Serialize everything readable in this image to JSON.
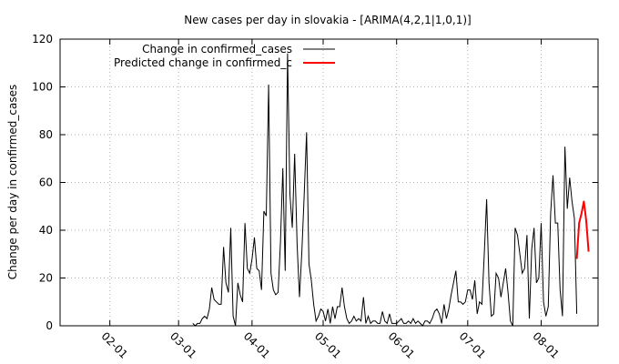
{
  "chart_data": {
    "type": "line",
    "title": "New cases per day in slovakia -  [ARIMA(4,2,1|1,0,1)]",
    "xlabel": "",
    "ylabel": "Change per day in confirmed_cases",
    "ylim": [
      0,
      120
    ],
    "y_ticks": [
      0,
      20,
      40,
      60,
      80,
      100,
      120
    ],
    "x_ticks": [
      {
        "label": "02-01",
        "x": 31
      },
      {
        "label": "03-01",
        "x": 60
      },
      {
        "label": "04-01",
        "x": 91
      },
      {
        "label": "05-01",
        "x": 121
      },
      {
        "label": "06-01",
        "x": 152
      },
      {
        "label": "07-01",
        "x": 182
      },
      {
        "label": "08-01",
        "x": 213
      }
    ],
    "xlim": [
      10,
      237
    ],
    "x_unit": "day of year",
    "grid": true,
    "legend_position": "top-left",
    "series": [
      {
        "name": "Change in confirmed_cases",
        "color": "#000000",
        "x": [
          66,
          67,
          68,
          69,
          70,
          71,
          72,
          73,
          74,
          75,
          76,
          77,
          78,
          79,
          80,
          81,
          82,
          83,
          84,
          85,
          86,
          87,
          88,
          89,
          90,
          91,
          92,
          93,
          94,
          95,
          96,
          97,
          98,
          99,
          100,
          101,
          102,
          103,
          104,
          105,
          106,
          107,
          108,
          109,
          110,
          111,
          112,
          113,
          114,
          115,
          116,
          117,
          118,
          119,
          120,
          121,
          122,
          123,
          124,
          125,
          126,
          127,
          128,
          129,
          130,
          131,
          132,
          133,
          134,
          135,
          136,
          137,
          138,
          139,
          140,
          141,
          142,
          143,
          144,
          145,
          146,
          147,
          148,
          149,
          150,
          151,
          152,
          153,
          154,
          155,
          156,
          157,
          158,
          159,
          160,
          161,
          162,
          163,
          164,
          165,
          166,
          167,
          168,
          169,
          170,
          171,
          172,
          173,
          174,
          175,
          176,
          177,
          178,
          179,
          180,
          181,
          182,
          183,
          184,
          185,
          186,
          187,
          188,
          189,
          190,
          191,
          192,
          193,
          194,
          195,
          196,
          197,
          198,
          199,
          200,
          201,
          202,
          203,
          204,
          205,
          206,
          207,
          208,
          209,
          210,
          211,
          212,
          213,
          214,
          215,
          216,
          217,
          218,
          219,
          220,
          221,
          222,
          223,
          224,
          225,
          226,
          227,
          228
        ],
        "y": [
          1,
          0,
          1,
          1,
          3,
          4,
          3,
          7,
          16,
          11,
          10,
          9,
          9,
          33,
          18,
          14,
          41,
          4,
          0,
          18,
          13,
          10,
          43,
          24,
          22,
          28,
          37,
          24,
          23,
          15,
          48,
          46,
          101,
          22,
          15,
          13,
          14,
          35,
          66,
          23,
          114,
          55,
          41,
          72,
          34,
          12,
          31,
          55,
          81,
          26,
          19,
          9,
          2,
          4,
          7,
          6,
          2,
          7,
          1,
          8,
          3,
          8,
          8,
          16,
          8,
          3,
          1,
          2,
          4,
          2,
          3,
          2,
          12,
          1,
          4,
          1,
          2,
          2,
          1,
          1,
          6,
          2,
          1,
          5,
          1,
          1,
          1,
          2,
          3,
          1,
          1,
          2,
          1,
          3,
          1,
          2,
          1,
          0,
          2,
          2,
          1,
          3,
          6,
          7,
          5,
          1,
          9,
          3,
          7,
          13,
          18,
          23,
          10,
          10,
          9,
          10,
          15,
          15,
          11,
          19,
          5,
          10,
          9,
          30,
          53,
          18,
          4,
          5,
          22,
          20,
          12,
          18,
          24,
          14,
          2,
          0,
          41,
          38,
          30,
          22,
          24,
          38,
          3,
          32,
          41,
          18,
          20,
          43,
          10,
          4,
          8,
          47,
          63,
          43,
          43,
          15,
          4,
          75,
          49,
          62,
          52,
          45,
          5
        ],
        "closing_x": 228
      },
      {
        "name": "Predicted change in confirmed_c",
        "color": "#ff0000",
        "x": [
          228,
          229,
          230,
          231,
          232,
          233
        ],
        "y": [
          28,
          43,
          47,
          52,
          44,
          31
        ]
      }
    ]
  }
}
